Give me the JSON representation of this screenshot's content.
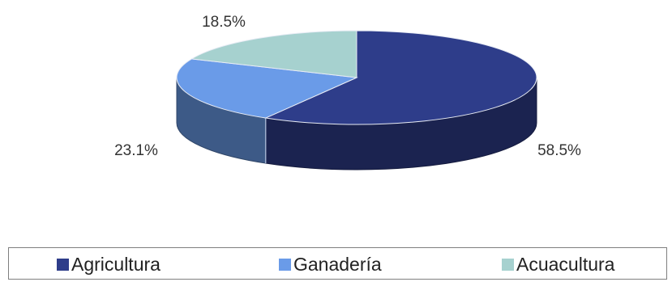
{
  "chart_data": {
    "type": "pie",
    "style": "3d",
    "categories": [
      "Agricultura",
      "Ganadería",
      "Acuacultura"
    ],
    "values": [
      58.5,
      23.1,
      18.5
    ],
    "data_labels": [
      "58.5%",
      "23.1%",
      "18.5%"
    ],
    "colors": [
      "#2e3d8a",
      "#6a9be8",
      "#a6d1cf"
    ],
    "legend": {
      "placement": "bottom",
      "entries": [
        "Agricultura",
        "Ganadería",
        "Acuacultura"
      ]
    }
  }
}
